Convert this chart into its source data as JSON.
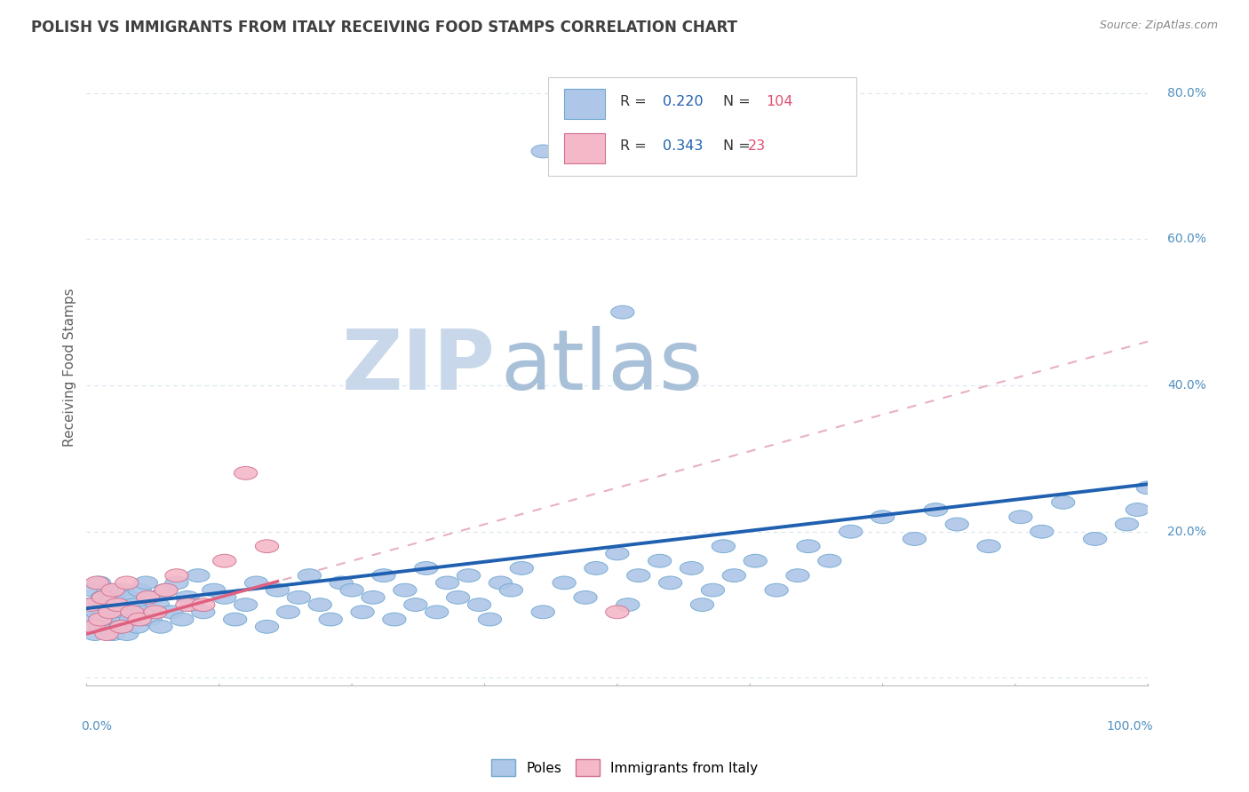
{
  "title": "POLISH VS IMMIGRANTS FROM ITALY RECEIVING FOOD STAMPS CORRELATION CHART",
  "source": "Source: ZipAtlas.com",
  "ylabel": "Receiving Food Stamps",
  "ytick_vals": [
    0.0,
    0.2,
    0.4,
    0.6,
    0.8
  ],
  "ytick_labels": [
    "",
    "20.0%",
    "40.0%",
    "60.0%",
    "80.0%"
  ],
  "poles_color": "#aec6e8",
  "poles_edge_color": "#6fa8d0",
  "italy_color": "#f4b8c8",
  "italy_edge_color": "#d07090",
  "blue_line_color": "#2060b0",
  "pink_line_color": "#e06080",
  "pink_dash_color": "#e8b0c0",
  "watermark_color_zip": "#c8d8ea",
  "watermark_color_atlas": "#a8c0d8",
  "background_color": "#ffffff",
  "grid_color": "#d8e4f0",
  "title_color": "#404040",
  "source_color": "#888888",
  "axis_label_color": "#5090c0",
  "ylabel_color": "#606060",
  "legend_r_color": "#2060b0",
  "legend_n_color": "#e05070",
  "blue_line_x0": 0,
  "blue_line_x1": 100,
  "blue_line_y0": 0.095,
  "blue_line_y1": 0.265,
  "pink_line_x0": 0,
  "pink_line_x1": 100,
  "pink_line_y0": 0.06,
  "pink_line_y1": 0.46,
  "poles_x": [
    0.3,
    0.5,
    0.6,
    0.8,
    1.0,
    1.2,
    1.3,
    1.5,
    1.6,
    1.8,
    2.0,
    2.1,
    2.3,
    2.5,
    2.6,
    2.8,
    3.0,
    3.2,
    3.4,
    3.6,
    3.8,
    4.0,
    4.2,
    4.5,
    4.8,
    5.0,
    5.3,
    5.6,
    6.0,
    6.3,
    6.7,
    7.0,
    7.5,
    8.0,
    8.5,
    9.0,
    9.5,
    10.0,
    10.5,
    11.0,
    12.0,
    13.0,
    14.0,
    15.0,
    16.0,
    17.0,
    18.0,
    19.0,
    20.0,
    21.0,
    22.0,
    23.0,
    24.0,
    25.0,
    26.0,
    27.0,
    28.0,
    29.0,
    30.0,
    31.0,
    32.0,
    33.0,
    34.0,
    35.0,
    36.0,
    37.0,
    38.0,
    39.0,
    40.0,
    41.0,
    43.0,
    45.0,
    47.0,
    48.0,
    50.0,
    51.0,
    52.0,
    54.0,
    55.0,
    57.0,
    58.0,
    59.0,
    60.0,
    61.0,
    63.0,
    65.0,
    67.0,
    68.0,
    70.0,
    72.0,
    75.0,
    78.0,
    80.0,
    82.0,
    85.0,
    88.0,
    90.0,
    92.0,
    95.0,
    98.0,
    99.0,
    100.0,
    43.0,
    50.5
  ],
  "poles_y": [
    0.1,
    0.08,
    0.12,
    0.06,
    0.09,
    0.13,
    0.07,
    0.11,
    0.08,
    0.1,
    0.07,
    0.12,
    0.09,
    0.06,
    0.11,
    0.08,
    0.1,
    0.07,
    0.12,
    0.09,
    0.06,
    0.11,
    0.08,
    0.1,
    0.07,
    0.12,
    0.09,
    0.13,
    0.08,
    0.11,
    0.1,
    0.07,
    0.12,
    0.09,
    0.13,
    0.08,
    0.11,
    0.1,
    0.14,
    0.09,
    0.12,
    0.11,
    0.08,
    0.1,
    0.13,
    0.07,
    0.12,
    0.09,
    0.11,
    0.14,
    0.1,
    0.08,
    0.13,
    0.12,
    0.09,
    0.11,
    0.14,
    0.08,
    0.12,
    0.1,
    0.15,
    0.09,
    0.13,
    0.11,
    0.14,
    0.1,
    0.08,
    0.13,
    0.12,
    0.15,
    0.09,
    0.13,
    0.11,
    0.15,
    0.17,
    0.1,
    0.14,
    0.16,
    0.13,
    0.15,
    0.1,
    0.12,
    0.18,
    0.14,
    0.16,
    0.12,
    0.14,
    0.18,
    0.16,
    0.2,
    0.22,
    0.19,
    0.23,
    0.21,
    0.18,
    0.22,
    0.2,
    0.24,
    0.19,
    0.21,
    0.23,
    0.26,
    0.72,
    0.5
  ],
  "italy_x": [
    0.4,
    0.7,
    1.0,
    1.3,
    1.6,
    1.9,
    2.2,
    2.5,
    2.9,
    3.3,
    3.8,
    4.3,
    5.0,
    5.8,
    6.5,
    7.5,
    8.5,
    9.5,
    11.0,
    13.0,
    15.0,
    17.0,
    50.0
  ],
  "italy_y": [
    0.1,
    0.07,
    0.13,
    0.08,
    0.11,
    0.06,
    0.09,
    0.12,
    0.1,
    0.07,
    0.13,
    0.09,
    0.08,
    0.11,
    0.09,
    0.12,
    0.14,
    0.1,
    0.1,
    0.16,
    0.28,
    0.18,
    0.09
  ],
  "xlim": [
    0,
    100
  ],
  "ylim": [
    -0.01,
    0.86
  ]
}
